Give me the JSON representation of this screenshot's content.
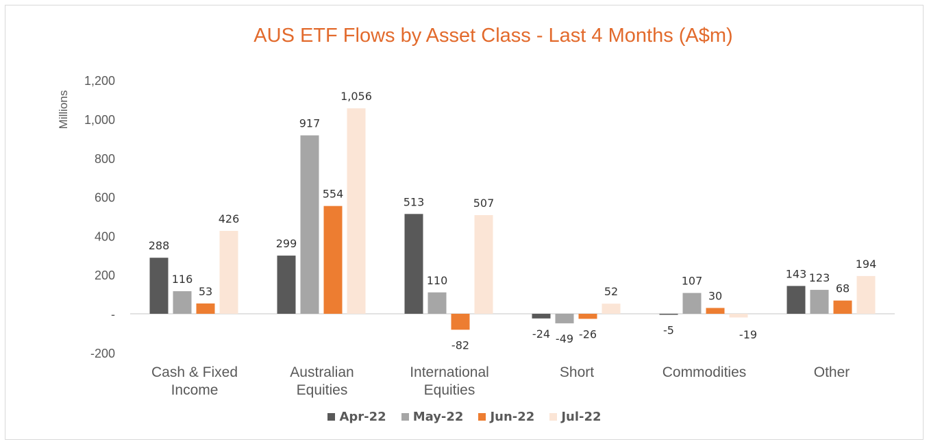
{
  "chart_data": {
    "type": "bar",
    "title": "AUS ETF Flows by Asset Class - Last 4 Months (A$m)",
    "ylabel": "Millions",
    "ylim": [
      -200,
      1200
    ],
    "yticks": [
      -200,
      0,
      200,
      400,
      600,
      800,
      1000,
      1200
    ],
    "ytick_labels": [
      "-200",
      "-",
      "200",
      "400",
      "600",
      "800",
      "1,000",
      "1,200"
    ],
    "categories": [
      [
        "Cash & Fixed",
        "Income"
      ],
      [
        "Australian",
        "Equities"
      ],
      [
        "International",
        "Equities"
      ],
      [
        "Short"
      ],
      [
        "Commodities"
      ],
      [
        "Other"
      ]
    ],
    "series": [
      {
        "name": "Apr-22",
        "color": "#595959",
        "values": [
          288,
          299,
          513,
          -24,
          -5,
          143
        ],
        "labels": [
          "288",
          "299",
          "513",
          "-24",
          "-5",
          "143"
        ]
      },
      {
        "name": "May-22",
        "color": "#a6a6a6",
        "values": [
          116,
          917,
          110,
          -49,
          107,
          123
        ],
        "labels": [
          "116",
          "917",
          "110",
          "-49",
          "107",
          "123"
        ]
      },
      {
        "name": "Jun-22",
        "color": "#ed7d31",
        "values": [
          53,
          554,
          -82,
          -26,
          30,
          68
        ],
        "labels": [
          "53",
          "554",
          "-82",
          "-26",
          "30",
          "68"
        ]
      },
      {
        "name": "Jul-22",
        "color": "#fbe5d6",
        "values": [
          426,
          1056,
          507,
          52,
          -19,
          194
        ],
        "labels": [
          "426",
          "1,056",
          "507",
          "52",
          "",
          "194"
        ]
      }
    ],
    "extra_labels": [
      {
        "series": 3,
        "category": 4,
        "text": "-19"
      }
    ],
    "grid": false,
    "legend": "bottom"
  }
}
